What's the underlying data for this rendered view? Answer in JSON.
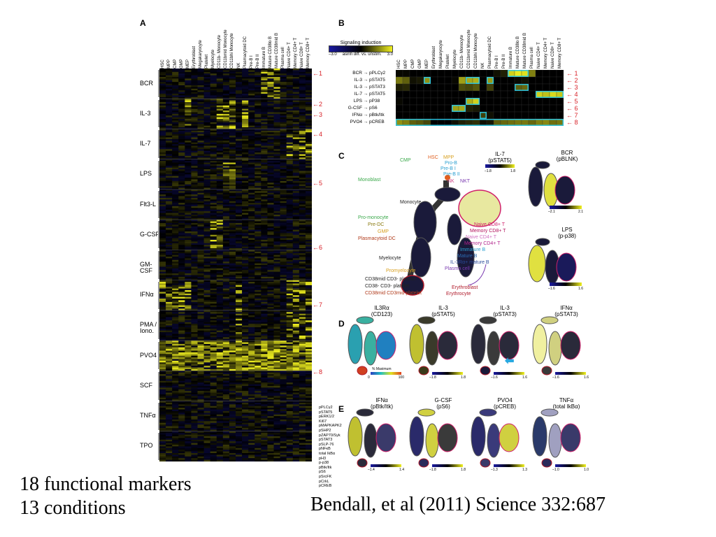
{
  "figure": {
    "panel_a": {
      "letter": "A",
      "columns": [
        "HSC",
        "MPP",
        "CMP",
        "GMP",
        "MEP",
        "Erythroblast",
        "Megakaryocyte",
        "Platelet",
        "Myelocyte",
        "CD11b- Monocyte",
        "CD11bmid Monocyte",
        "CD11bhi Monocyte",
        "NK",
        "Plasmacytoid DC",
        "Pre-B I",
        "Pre-B II",
        "Immature B",
        "Mature CD38lo B",
        "Mature CD38mid B",
        "Plasma cell",
        "Naive CD4+ T",
        "Memory CD4+ T",
        "Naive CD8+ T",
        "Memory CD8+ T"
      ],
      "conditions": [
        "BCR",
        "IL-3",
        "IL-7",
        "LPS",
        "Flt3-L",
        "G-CSF",
        "GM-CSF",
        "IFNα",
        "PMA / Iono.",
        "PVO4",
        "SCF",
        "TNFα",
        "TPO"
      ],
      "arrow_labels": [
        "1",
        "2",
        "3",
        "4",
        "5",
        "6",
        "7",
        "8"
      ],
      "markers": [
        "pPLCγ2",
        "pSTAT5",
        "pERK1/2",
        "Ki67",
        "pMAPKAPK2",
        "pSHP2",
        "pZAP70/Syk",
        "pSTAT3",
        "pSLP-76",
        "pNFκB",
        "total IkBα",
        "pH3",
        "p-p38",
        "pBtk/Itk",
        "pS6",
        "pSrcFK",
        "pCrkL",
        "pCREB"
      ]
    },
    "panel_b": {
      "letter": "B",
      "legend_title": "Signaling induction",
      "legend_min": "–3.0",
      "legend_caption": "asinh diff. vs. unstim.",
      "legend_max": "3.0",
      "columns": [
        "HSC",
        "MPP",
        "CMP",
        "GMP",
        "MEP",
        "Erythroblast",
        "Megakaryocyte",
        "Platelet",
        "Myelocyte",
        "CD11b- Monocyte",
        "CD11bmid Monocyte",
        "CD11bhi Monocyte",
        "NK",
        "Plasmacytoid DC",
        "Pre-B I",
        "Pre-B II",
        "Immature B",
        "Mature CD38lo B",
        "Mature CD38mid B",
        "Plasma cell",
        "Naive CD4+ T",
        "Memory CD4+ T",
        "Naive CD8+ T",
        "Memory CD8+ T"
      ],
      "rows": [
        {
          "stim": "BCR",
          "arrow": "→",
          "marker": "pPLCγ2",
          "num": "1"
        },
        {
          "stim": "IL-3",
          "arrow": "→",
          "marker": "pSTAT5",
          "num": "2"
        },
        {
          "stim": "IL-3",
          "arrow": "→",
          "marker": "pSTAT3",
          "num": "3"
        },
        {
          "stim": "IL-7",
          "arrow": "→",
          "marker": "pSTAT5",
          "num": "4"
        },
        {
          "stim": "LPS",
          "arrow": "→",
          "marker": "pP38",
          "num": "5"
        },
        {
          "stim": "G-CSF",
          "arrow": "→",
          "marker": "pS6",
          "num": "6"
        },
        {
          "stim": "IFNα",
          "arrow": "→",
          "marker": "pBtk/Itk",
          "num": "7"
        },
        {
          "stim": "PVO4",
          "arrow": "→",
          "marker": "pCREB",
          "num": "8"
        }
      ]
    },
    "panel_c": {
      "letter": "C",
      "main_title": "IL-7",
      "main_subtitle": "(pSTAT5)",
      "main_min": "–1.8",
      "main_max": "1.8",
      "labels_left": [
        {
          "text": "CMP",
          "color": "#3aa84a"
        },
        {
          "text": "Monoblast",
          "color": "#3aa84a"
        },
        {
          "text": "Monocyte",
          "color": "#222222"
        },
        {
          "text": "Pro-monocyte",
          "color": "#3aa84a"
        },
        {
          "text": "Pre-DC",
          "color": "#8a7a10"
        },
        {
          "text": "GMP",
          "color": "#d8a020"
        },
        {
          "text": "Plasmacytoid DC",
          "color": "#b03a1a"
        },
        {
          "text": "Myelocyte",
          "color": "#222222"
        },
        {
          "text": "Promyelocyte",
          "color": "#d8a020"
        },
        {
          "text": "CD38mid CD3- platelet",
          "color": "#222222"
        },
        {
          "text": "CD38- CD3- platelet",
          "color": "#222222"
        },
        {
          "text": "CD38mid CD3mid platelet",
          "color": "#b03a1a"
        }
      ],
      "labels_top": [
        {
          "text": "HSC",
          "color": "#e06020"
        },
        {
          "text": "MPP",
          "color": "#d8a020"
        },
        {
          "text": "Pro-B",
          "color": "#2a9fd0"
        },
        {
          "text": "Pre-B I",
          "color": "#2a9fd0"
        },
        {
          "text": "Pre-B II",
          "color": "#2a9fd0"
        },
        {
          "text": "NK",
          "color": "#d04a8a"
        },
        {
          "text": "NKT",
          "color": "#7a3ab0"
        }
      ],
      "labels_right": [
        {
          "text": "Naive CD8+ T",
          "color": "#d0206a"
        },
        {
          "text": "Memory CD8+ T",
          "color": "#b0105a"
        },
        {
          "text": "Naive CD4+ T",
          "color": "#d070c0"
        },
        {
          "text": "Memory CD4+ T",
          "color": "#b0208a"
        },
        {
          "text": "Immature B",
          "color": "#2a9fd0"
        },
        {
          "text": "Mature B",
          "color": "#2a6ab0"
        },
        {
          "text": "IL-3Rα+ mature B",
          "color": "#2a4a9a"
        },
        {
          "text": "Plasma cell",
          "color": "#7a3ab0"
        },
        {
          "text": "Erythroblast",
          "color": "#b01a2a"
        },
        {
          "text": "Erythrocyte",
          "color": "#b01a2a"
        }
      ],
      "side1_title": "BCR",
      "side1_subtitle": "(pBLNK)",
      "side1_min": "–2.1",
      "side1_max": "2.1",
      "side2_title": "LPS",
      "side2_subtitle": "(p-p38)",
      "side2_min": "–1.6",
      "side2_max": "1.6"
    },
    "panel_d": {
      "letter": "D",
      "trees": [
        {
          "title": "IL3Rα",
          "subtitle": "(CD123)",
          "min": "0",
          "max": "100",
          "scale_label": "% Maximum"
        },
        {
          "title": "IL-3",
          "subtitle": "(pSTAT5)",
          "min": "–1.8",
          "max": "1.8"
        },
        {
          "title": "IL-3",
          "subtitle": "(pSTAT3)",
          "min": "–1.6",
          "max": "1.6"
        },
        {
          "title": "IFNα",
          "subtitle": "(pSTAT3)",
          "min": "–1.6",
          "max": "1.6"
        }
      ]
    },
    "panel_e": {
      "letter": "E",
      "trees": [
        {
          "title": "IFNα",
          "subtitle": "(pBtk/Itk)",
          "min": "–1.4",
          "max": "1.4"
        },
        {
          "title": "G-CSF",
          "subtitle": "(pS6)",
          "min": "–1.8",
          "max": "1.8"
        },
        {
          "title": "PVO4",
          "subtitle": "(pCREB)",
          "min": "–1.3",
          "max": "1.3"
        },
        {
          "title": "TNFα",
          "subtitle": "(total IkBα)",
          "min": "–1.0",
          "max": "1.0"
        }
      ]
    }
  },
  "caption": {
    "line1": "18 functional markers",
    "line2": "13 conditions"
  },
  "citation": "Bendall, et al (2011) Science 332:687",
  "colors": {
    "blue": "#1a1aa0",
    "black": "#000000",
    "yellow": "#f0f020",
    "highlight": "#28c8e8",
    "arrow": "#d8232a"
  },
  "chart_data": {
    "type": "heatmap",
    "title": "",
    "xlabel": "",
    "ylabel": "",
    "legend_title": "Signaling induction",
    "legend_caption": "asinh diff. vs. unstim.",
    "range": [
      -3.0,
      3.0
    ],
    "x": [
      "HSC",
      "MPP",
      "CMP",
      "GMP",
      "MEP",
      "Erythroblast",
      "Megakaryocyte",
      "Platelet",
      "Myelocyte",
      "CD11b- Monocyte",
      "CD11bmid Monocyte",
      "CD11bhi Monocyte",
      "NK",
      "Plasmacytoid DC",
      "Pre-B I",
      "Pre-B II",
      "Immature B",
      "Mature CD38lo B",
      "Mature CD38mid B",
      "Plasma cell",
      "Naive CD4+ T",
      "Memory CD4+ T",
      "Naive CD8+ T",
      "Memory CD8+ T"
    ],
    "y": [
      "BCR → pPLCγ2",
      "IL-3 → pSTAT5",
      "IL-3 → pSTAT3",
      "IL-7 → pSTAT5",
      "LPS → pP38",
      "G-CSF → pS6",
      "IFNα → pBtk/Itk",
      "PVO4 → pCREB"
    ],
    "values": [
      [
        0.1,
        0.1,
        0.0,
        0.0,
        0.0,
        0.0,
        0.0,
        0.0,
        0.0,
        0.0,
        0.0,
        0.0,
        0.0,
        0.0,
        0.2,
        0.4,
        2.6,
        2.9,
        2.8,
        1.6,
        0.0,
        0.0,
        0.0,
        0.0
      ],
      [
        1.5,
        1.2,
        0.2,
        0.3,
        1.8,
        0.0,
        0.0,
        0.0,
        0.1,
        2.0,
        2.1,
        2.2,
        0.0,
        1.9,
        0.0,
        0.0,
        0.0,
        0.1,
        0.2,
        0.0,
        0.0,
        0.0,
        0.0,
        0.0
      ],
      [
        0.4,
        0.5,
        0.0,
        0.0,
        0.0,
        0.0,
        0.0,
        0.0,
        0.0,
        1.0,
        0.9,
        1.1,
        0.0,
        0.8,
        0.0,
        0.0,
        0.0,
        1.2,
        1.3,
        0.0,
        0.0,
        0.0,
        0.0,
        0.0
      ],
      [
        0.0,
        0.0,
        0.0,
        0.0,
        0.0,
        0.0,
        0.0,
        0.0,
        0.0,
        0.0,
        0.0,
        0.0,
        0.0,
        0.0,
        0.0,
        0.0,
        0.0,
        0.1,
        0.0,
        0.0,
        2.6,
        2.4,
        2.7,
        2.5
      ],
      [
        0.1,
        0.0,
        0.0,
        0.0,
        0.0,
        0.0,
        0.0,
        0.0,
        0.0,
        0.0,
        2.2,
        2.6,
        0.0,
        0.0,
        0.0,
        0.0,
        0.0,
        0.0,
        0.0,
        0.0,
        0.0,
        0.0,
        0.0,
        0.0
      ],
      [
        0.0,
        0.0,
        0.0,
        0.0,
        0.0,
        0.0,
        0.0,
        0.0,
        2.0,
        2.1,
        0.4,
        0.3,
        0.0,
        0.0,
        0.0,
        0.0,
        0.0,
        0.0,
        0.0,
        0.0,
        0.0,
        0.0,
        0.0,
        0.0
      ],
      [
        0.0,
        0.0,
        0.0,
        0.0,
        0.0,
        0.0,
        0.0,
        0.0,
        0.0,
        0.0,
        0.0,
        0.0,
        0.8,
        0.2,
        0.0,
        0.0,
        0.0,
        0.0,
        0.0,
        0.0,
        0.0,
        0.0,
        0.0,
        0.0
      ],
      [
        1.8,
        1.6,
        1.2,
        1.1,
        0.9,
        0.0,
        0.0,
        0.0,
        0.2,
        0.4,
        0.5,
        0.6,
        0.2,
        0.3,
        1.2,
        1.3,
        1.4,
        1.5,
        1.5,
        1.3,
        1.6,
        1.7,
        1.4,
        1.5
      ]
    ],
    "highlighted_cells": {
      "BCR → pPLCγ2": [
        "Immature B",
        "Mature CD38lo B",
        "Mature CD38mid B"
      ],
      "IL-3 → pSTAT5": [
        "MEP",
        "CD11bmid Monocyte",
        "CD11bhi Monocyte",
        "Plasmacytoid DC"
      ],
      "IL-3 → pSTAT3": [
        "Mature CD38lo B",
        "Mature CD38mid B"
      ],
      "IL-7 → pSTAT5": [
        "Naive CD4+ T",
        "Memory CD4+ T",
        "Naive CD8+ T",
        "Memory CD8+ T"
      ],
      "LPS → pP38": [
        "CD11bmid Monocyte",
        "CD11bhi Monocyte"
      ],
      "G-CSF → pS6": [
        "Myelocyte",
        "CD11b- Monocyte"
      ],
      "IFNα → pBtk/Itk": [
        "NK"
      ],
      "PVO4 → pCREB": [
        "HSC",
        "MPP",
        "CMP",
        "GMP",
        "MEP",
        "Erythroblast",
        "Megakaryocyte",
        "Platelet",
        "Myelocyte",
        "CD11b- Monocyte",
        "CD11bmid Monocyte",
        "CD11bhi Monocyte",
        "NK",
        "Plasmacytoid DC",
        "Pre-B I",
        "Pre-B II",
        "Immature B",
        "Mature CD38lo B",
        "Mature CD38mid B",
        "Plasma cell",
        "Naive CD4+ T",
        "Memory CD4+ T",
        "Naive CD8+ T",
        "Memory CD8+ T"
      ]
    }
  }
}
